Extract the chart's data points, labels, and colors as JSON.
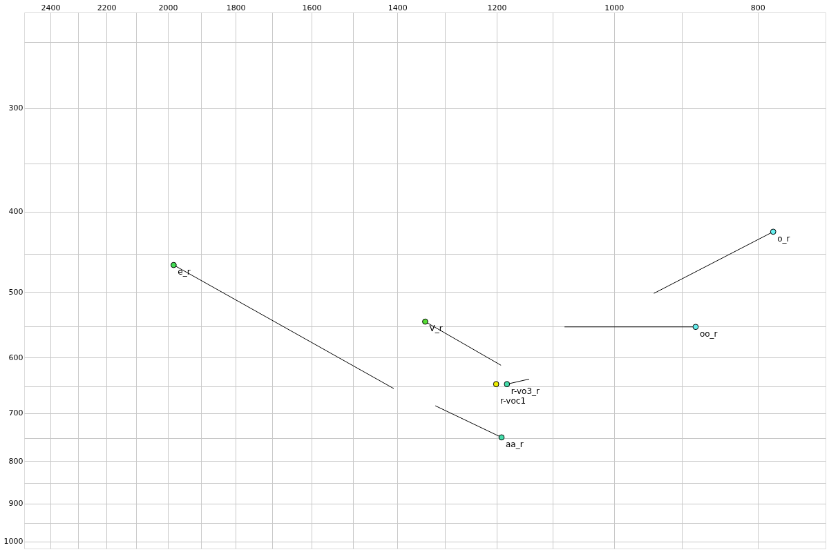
{
  "chart_data": {
    "type": "scatter",
    "log": "xy",
    "grid": true,
    "marker": "circle",
    "line_style": "solid",
    "xlim": [
      2500,
      720
    ],
    "ylim": [
      1020,
      230
    ],
    "xticks": [
      2400,
      {
        "value": 2300,
        "label": null
      },
      2200,
      {
        "value": 2100,
        "label": null
      },
      2000,
      {
        "value": 1900,
        "label": null
      },
      1800,
      {
        "value": 1700,
        "label": null
      },
      1600,
      {
        "value": 1500,
        "label": null
      },
      1400,
      {
        "value": 1300,
        "label": null
      },
      1200,
      {
        "value": 1100,
        "label": null
      },
      1000,
      {
        "value": 900,
        "label": null
      },
      800
    ],
    "yticks": [
      {
        "value": 250,
        "label": null
      },
      300,
      {
        "value": 350,
        "label": null
      },
      400,
      {
        "value": 450,
        "label": null
      },
      500,
      {
        "value": 550,
        "label": null
      },
      600,
      {
        "value": 650,
        "label": null
      },
      700,
      {
        "value": 750,
        "label": null
      },
      800,
      {
        "value": 850,
        "label": null
      },
      900,
      {
        "value": 950,
        "label": null
      },
      1000
    ],
    "series": [
      {
        "type": "line",
        "marker": "none",
        "color": "#000000",
        "x": [
          1982,
          1408
        ],
        "values": [
          464,
          654
        ]
      },
      {
        "type": "line",
        "marker": "none",
        "color": "#000000",
        "x": [
          1341,
          1192
        ],
        "values": [
          543,
          613
        ]
      },
      {
        "type": "line",
        "marker": "none",
        "color": "#000000",
        "x": [
          781,
          940
        ],
        "values": [
          423,
          502
        ]
      },
      {
        "type": "line",
        "marker": "none",
        "color": "#000000",
        "x": [
          881,
          1080
        ],
        "values": [
          551,
          551
        ]
      },
      {
        "type": "line",
        "marker": "none",
        "color": "#000000",
        "x": [
          1181,
          1141
        ],
        "values": [
          646,
          637
        ]
      },
      {
        "type": "line",
        "marker": "none",
        "color": "#000000",
        "x": [
          1191,
          1320
        ],
        "values": [
          749,
          686
        ]
      },
      {
        "name": "e_r",
        "color": "#44dd55",
        "x": [
          1982
        ],
        "values": [
          464
        ]
      },
      {
        "name": "V_r",
        "color": "#55dd33",
        "x": [
          1341
        ],
        "values": [
          543
        ]
      },
      {
        "name": "o_r",
        "color": "#66eeee",
        "x": [
          781
        ],
        "values": [
          423
        ]
      },
      {
        "name": "oo_r",
        "color": "#66eeee",
        "x": [
          881
        ],
        "values": [
          551
        ]
      },
      {
        "name": "r-vo3_r",
        "color": "#44ddaa",
        "x": [
          1181
        ],
        "values": [
          646
        ]
      },
      {
        "name": "r-voc1",
        "color": "#eeee00",
        "x": [
          1201
        ],
        "values": [
          646
        ]
      },
      {
        "name": "aa_r",
        "color": "#44ddaa",
        "x": [
          1191
        ],
        "values": [
          749
        ]
      }
    ]
  }
}
